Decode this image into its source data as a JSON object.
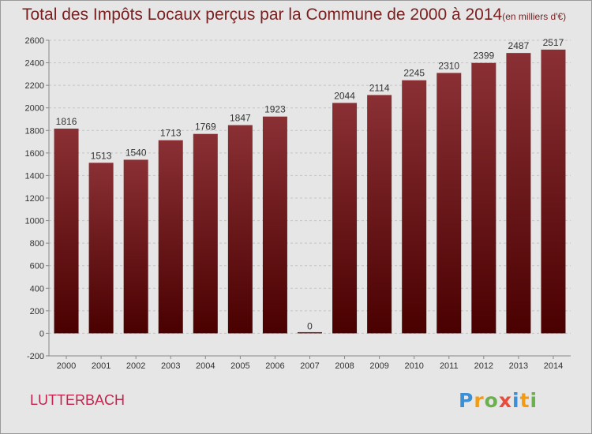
{
  "title": "Total des Impôts Locaux perçus par la Commune de 2000 à 2014",
  "unit_note": "(en milliers d'€)",
  "commune": "LUTTERBACH",
  "logo": {
    "letters": [
      "P",
      "r",
      "o",
      "x",
      "i",
      "t",
      "i"
    ],
    "colors": [
      "#3a8fd6",
      "#f39c12",
      "#6ab04c",
      "#e74c3c",
      "#3a8fd6",
      "#f39c12",
      "#6ab04c"
    ]
  },
  "colors": {
    "bar_top": "#8a3035",
    "bar_bottom": "#4a0000",
    "title": "#7a1f1f",
    "commune": "#c0264f",
    "background": "#e6e6e6"
  },
  "chart_data": {
    "type": "bar",
    "categories": [
      "2000",
      "2001",
      "2002",
      "2003",
      "2004",
      "2005",
      "2006",
      "2007",
      "2008",
      "2009",
      "2010",
      "2011",
      "2012",
      "2013",
      "2014"
    ],
    "values": [
      1816,
      1513,
      1540,
      1713,
      1769,
      1847,
      1923,
      0,
      2044,
      2114,
      2245,
      2310,
      2399,
      2487,
      2517
    ],
    "ylim": [
      -200,
      2600
    ],
    "yticks": [
      -200,
      0,
      200,
      400,
      600,
      800,
      1000,
      1200,
      1400,
      1600,
      1800,
      2000,
      2200,
      2400,
      2600
    ],
    "grid": true
  }
}
